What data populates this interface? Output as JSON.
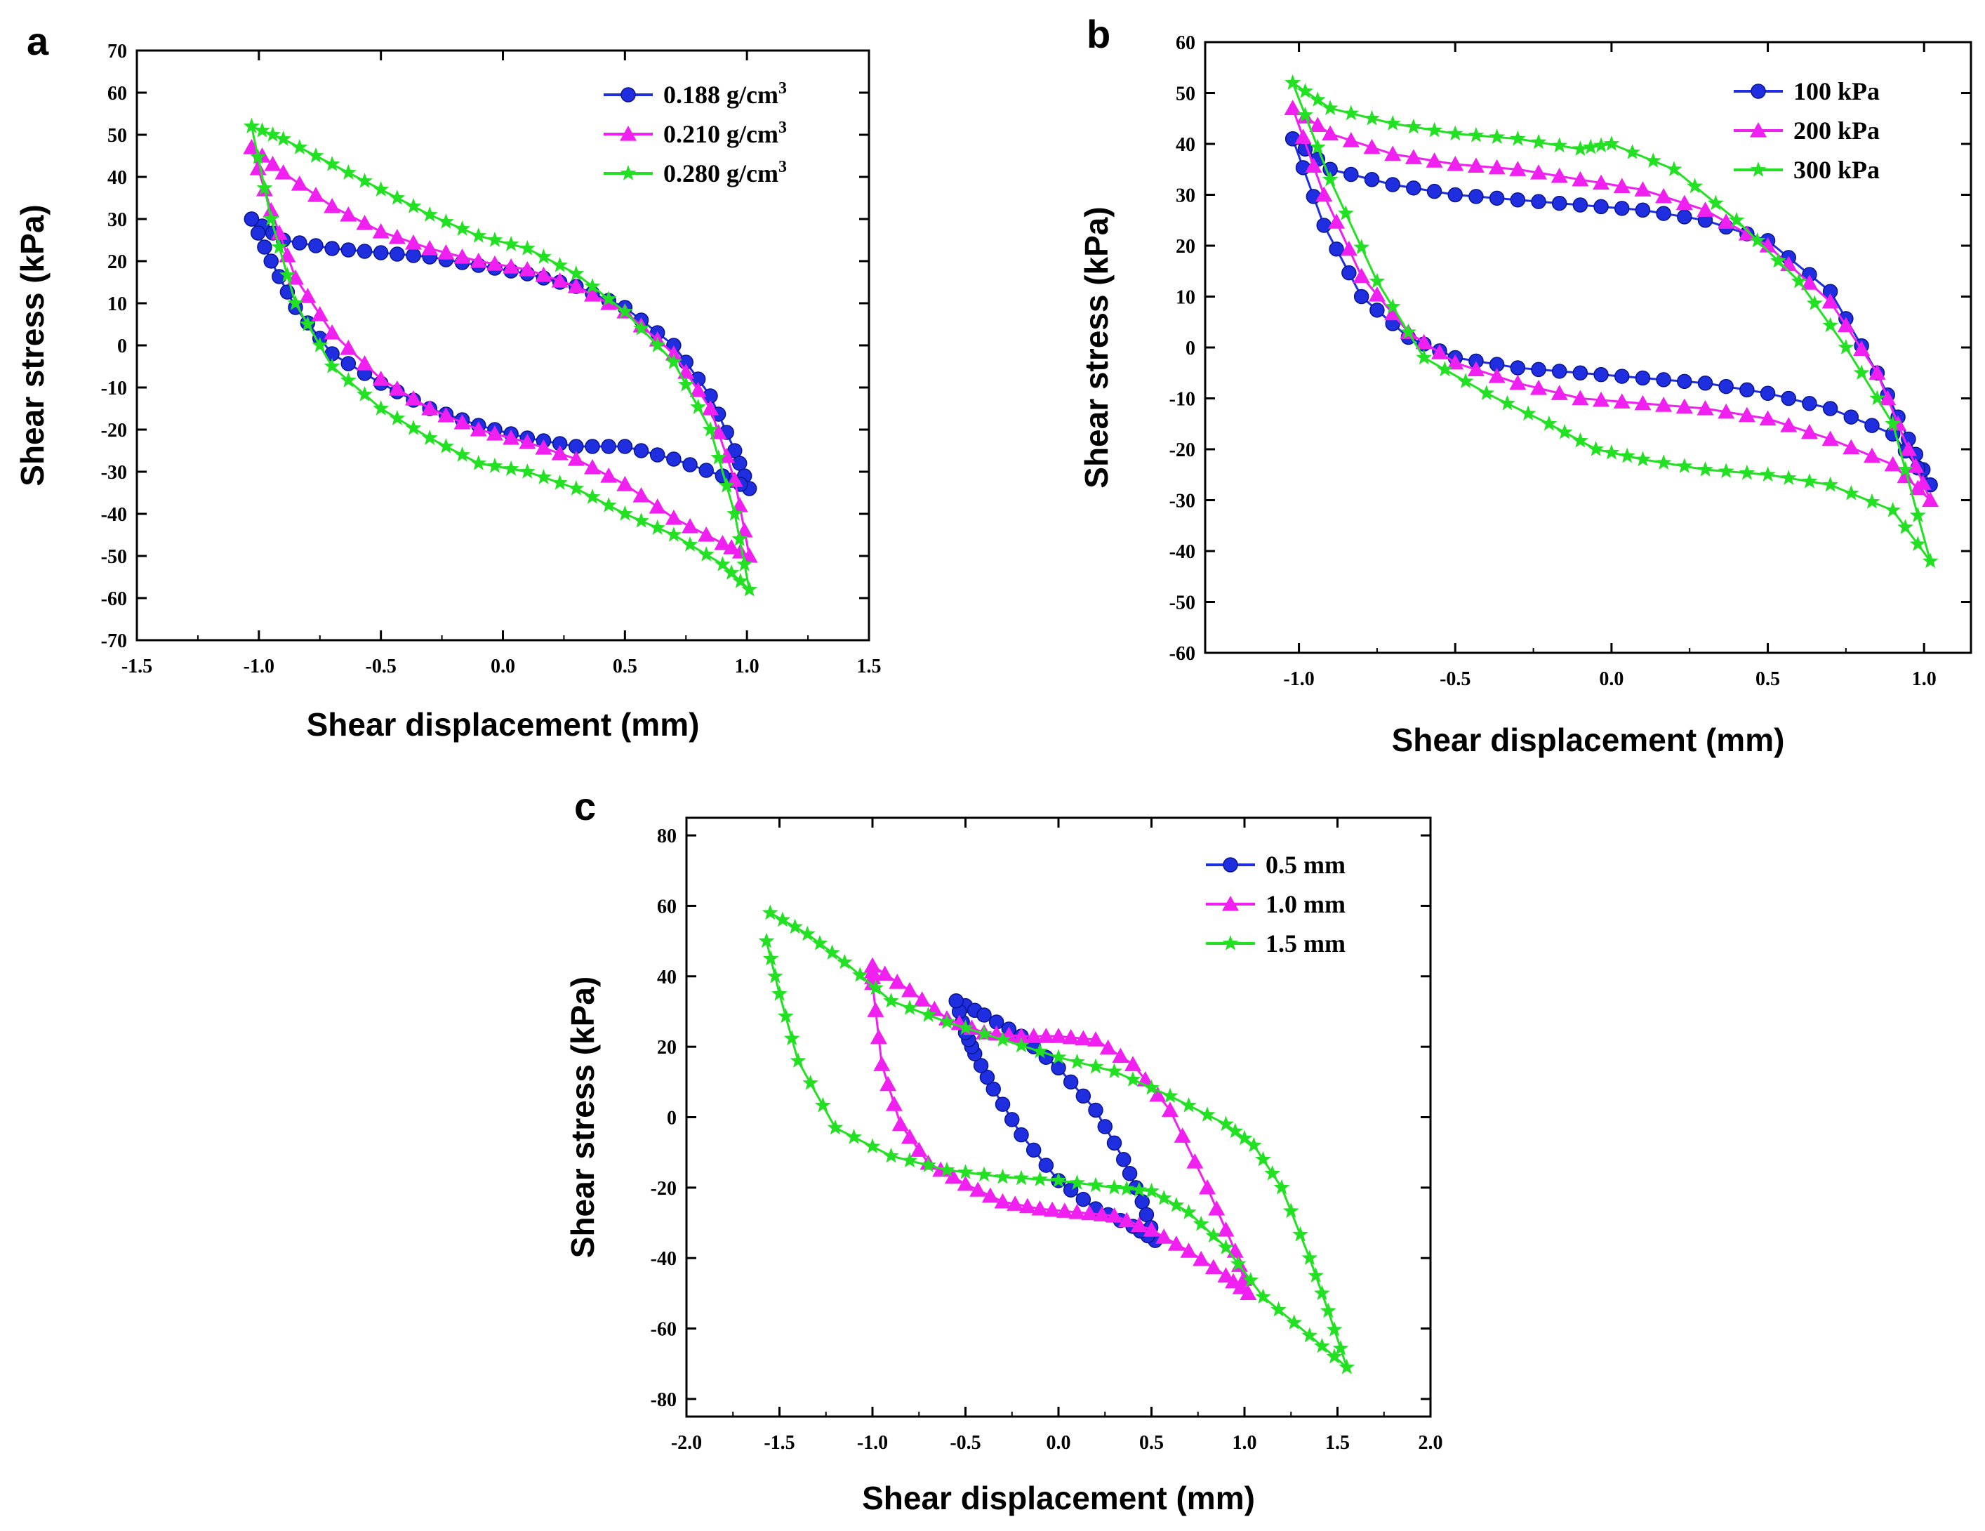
{
  "colors": {
    "blue": "#1f2fe0",
    "magenta": "#f020f0",
    "green": "#22e022"
  },
  "chart_data": [
    {
      "panel": "a",
      "type": "line",
      "xlabel": "Shear displacement (mm)",
      "ylabel": "Shear stress (kPa)",
      "xlim": [
        -1.5,
        1.5
      ],
      "ylim": [
        -70,
        70
      ],
      "xticks": [
        "-1.5",
        "-1.0",
        "-0.5",
        "0.0",
        "0.5",
        "1.0",
        "1.5"
      ],
      "yticks": [
        "-70",
        "-60",
        "-50",
        "-40",
        "-30",
        "-20",
        "-10",
        "0",
        "10",
        "20",
        "30",
        "40",
        "50",
        "60",
        "70"
      ],
      "legend_position": "top-right",
      "series": [
        {
          "name": "0.188 g/cm",
          "name_sup": "3",
          "color": "#1f2fe0",
          "marker": "circle",
          "points": [
            [
              -1.03,
              30
            ],
            [
              -0.9,
              25
            ],
            [
              -0.7,
              23
            ],
            [
              -0.5,
              22
            ],
            [
              -0.3,
              21
            ],
            [
              -0.1,
              19
            ],
            [
              0.1,
              17
            ],
            [
              0.3,
              14
            ],
            [
              0.5,
              9
            ],
            [
              0.7,
              0
            ],
            [
              0.85,
              -12
            ],
            [
              0.95,
              -25
            ],
            [
              1.01,
              -34
            ],
            [
              0.9,
              -31
            ],
            [
              0.7,
              -27
            ],
            [
              0.5,
              -24
            ],
            [
              0.3,
              -24
            ],
            [
              0.1,
              -22
            ],
            [
              -0.1,
              -19
            ],
            [
              -0.3,
              -15
            ],
            [
              -0.5,
              -9
            ],
            [
              -0.7,
              -2
            ],
            [
              -0.85,
              9
            ],
            [
              -0.95,
              20
            ],
            [
              -1.03,
              30
            ]
          ]
        },
        {
          "name": "0.210 g/cm",
          "name_sup": "3",
          "color": "#f020f0",
          "marker": "triangle",
          "points": [
            [
              -1.03,
              47
            ],
            [
              -0.9,
              41
            ],
            [
              -0.7,
              33
            ],
            [
              -0.5,
              27
            ],
            [
              -0.3,
              23
            ],
            [
              -0.1,
              20
            ],
            [
              0.1,
              18
            ],
            [
              0.3,
              14
            ],
            [
              0.5,
              8
            ],
            [
              0.7,
              -2
            ],
            [
              0.85,
              -15
            ],
            [
              0.95,
              -32
            ],
            [
              1.01,
              -50
            ],
            [
              0.9,
              -47
            ],
            [
              0.7,
              -41
            ],
            [
              0.5,
              -33
            ],
            [
              0.3,
              -27
            ],
            [
              0.1,
              -23
            ],
            [
              -0.1,
              -20
            ],
            [
              -0.3,
              -15
            ],
            [
              -0.5,
              -8
            ],
            [
              -0.7,
              3
            ],
            [
              -0.85,
              16
            ],
            [
              -0.95,
              32
            ],
            [
              -1.03,
              47
            ]
          ]
        },
        {
          "name": "0.280 g/cm",
          "name_sup": "3",
          "color": "#22e022",
          "marker": "star",
          "points": [
            [
              -1.03,
              52
            ],
            [
              -0.9,
              49
            ],
            [
              -0.7,
              43
            ],
            [
              -0.5,
              37
            ],
            [
              -0.3,
              31
            ],
            [
              -0.1,
              26
            ],
            [
              0.1,
              23
            ],
            [
              0.3,
              17
            ],
            [
              0.5,
              8
            ],
            [
              0.7,
              -4
            ],
            [
              0.85,
              -20
            ],
            [
              0.95,
              -40
            ],
            [
              1.01,
              -58
            ],
            [
              0.9,
              -52
            ],
            [
              0.7,
              -45
            ],
            [
              0.5,
              -40
            ],
            [
              0.3,
              -34
            ],
            [
              0.1,
              -30
            ],
            [
              -0.1,
              -28
            ],
            [
              -0.3,
              -22
            ],
            [
              -0.5,
              -15
            ],
            [
              -0.7,
              -5
            ],
            [
              -0.85,
              10
            ],
            [
              -0.95,
              30
            ],
            [
              -1.03,
              52
            ]
          ]
        }
      ]
    },
    {
      "panel": "b",
      "type": "line",
      "xlabel": "Shear displacement (mm)",
      "ylabel": "Shear stress (kPa)",
      "xlim": [
        -1.3,
        1.15
      ],
      "ylim": [
        -60,
        60
      ],
      "xticks": [
        "-1.0",
        "-0.5",
        "0.0",
        "0.5",
        "1.0"
      ],
      "xtick_values": [
        -1.0,
        -0.5,
        0.0,
        0.5,
        1.0
      ],
      "yticks": [
        "-60",
        "-50",
        "-40",
        "-30",
        "-20",
        "-10",
        "0",
        "10",
        "20",
        "30",
        "40",
        "50",
        "60"
      ],
      "legend_position": "top-right",
      "series": [
        {
          "name": "100 kPa",
          "color": "#1f2fe0",
          "marker": "circle",
          "points": [
            [
              -1.02,
              41
            ],
            [
              -0.9,
              35
            ],
            [
              -0.7,
              32
            ],
            [
              -0.5,
              30
            ],
            [
              -0.3,
              29
            ],
            [
              -0.1,
              28
            ],
            [
              0.1,
              27
            ],
            [
              0.3,
              25
            ],
            [
              0.5,
              21
            ],
            [
              0.7,
              11
            ],
            [
              0.85,
              -5
            ],
            [
              0.95,
              -18
            ],
            [
              1.02,
              -27
            ],
            [
              0.9,
              -17
            ],
            [
              0.7,
              -12
            ],
            [
              0.5,
              -9
            ],
            [
              0.3,
              -7
            ],
            [
              0.1,
              -6
            ],
            [
              -0.1,
              -5
            ],
            [
              -0.3,
              -4
            ],
            [
              -0.5,
              -2
            ],
            [
              -0.65,
              2
            ],
            [
              -0.8,
              10
            ],
            [
              -0.92,
              24
            ],
            [
              -1.02,
              41
            ]
          ]
        },
        {
          "name": "200 kPa",
          "color": "#f020f0",
          "marker": "triangle",
          "points": [
            [
              -1.02,
              47
            ],
            [
              -0.9,
              42
            ],
            [
              -0.7,
              38
            ],
            [
              -0.5,
              36
            ],
            [
              -0.3,
              35
            ],
            [
              -0.1,
              33
            ],
            [
              0.1,
              31
            ],
            [
              0.3,
              27
            ],
            [
              0.5,
              20
            ],
            [
              0.7,
              9
            ],
            [
              0.85,
              -5
            ],
            [
              0.95,
              -20
            ],
            [
              1.02,
              -30
            ],
            [
              0.9,
              -23
            ],
            [
              0.7,
              -18
            ],
            [
              0.5,
              -14
            ],
            [
              0.3,
              -12
            ],
            [
              0.1,
              -11
            ],
            [
              -0.1,
              -10
            ],
            [
              -0.3,
              -7
            ],
            [
              -0.5,
              -3
            ],
            [
              -0.65,
              3
            ],
            [
              -0.8,
              14
            ],
            [
              -0.92,
              30
            ],
            [
              -1.02,
              47
            ]
          ]
        },
        {
          "name": "300 kPa",
          "color": "#22e022",
          "marker": "star",
          "points": [
            [
              -1.02,
              52
            ],
            [
              -0.9,
              47
            ],
            [
              -0.7,
              44
            ],
            [
              -0.5,
              42
            ],
            [
              -0.3,
              41
            ],
            [
              -0.1,
              39
            ],
            [
              0.0,
              40
            ],
            [
              0.2,
              35
            ],
            [
              0.4,
              25
            ],
            [
              0.6,
              13
            ],
            [
              0.75,
              0
            ],
            [
              0.9,
              -15
            ],
            [
              1.02,
              -42
            ],
            [
              0.9,
              -32
            ],
            [
              0.7,
              -27
            ],
            [
              0.5,
              -25
            ],
            [
              0.3,
              -24
            ],
            [
              0.1,
              -22
            ],
            [
              -0.05,
              -20
            ],
            [
              -0.2,
              -15
            ],
            [
              -0.4,
              -9
            ],
            [
              -0.6,
              -2
            ],
            [
              -0.75,
              13
            ],
            [
              -0.9,
              33
            ],
            [
              -1.02,
              52
            ]
          ]
        }
      ]
    },
    {
      "panel": "c",
      "type": "line",
      "xlabel": "Shear displacement (mm)",
      "ylabel": "Shear stress (kPa)",
      "xlim": [
        -2.0,
        2.0
      ],
      "ylim": [
        -85,
        85
      ],
      "xticks": [
        "-2.0",
        "-1.5",
        "-1.0",
        "-0.5",
        "0.0",
        "0.5",
        "1.0",
        "1.5",
        "2.0"
      ],
      "xtick_values": [
        -2.0,
        -1.5,
        -1.0,
        -0.5,
        0.0,
        0.5,
        1.0,
        1.5,
        2.0
      ],
      "yticks": [
        "-80",
        "-60",
        "-40",
        "-20",
        "0",
        "20",
        "40",
        "60",
        "80"
      ],
      "ytick_values": [
        -80,
        -60,
        -40,
        -20,
        0,
        20,
        40,
        60,
        80
      ],
      "legend_position": "top-right",
      "series": [
        {
          "name": "0.5 mm",
          "color": "#1f2fe0",
          "marker": "circle",
          "points": [
            [
              -0.55,
              33
            ],
            [
              -0.4,
              29
            ],
            [
              -0.2,
              23
            ],
            [
              0.0,
              14
            ],
            [
              0.2,
              2
            ],
            [
              0.35,
              -12
            ],
            [
              0.45,
              -24
            ],
            [
              0.52,
              -35
            ],
            [
              0.4,
              -31
            ],
            [
              0.2,
              -26
            ],
            [
              0.0,
              -18
            ],
            [
              -0.2,
              -5
            ],
            [
              -0.35,
              8
            ],
            [
              -0.45,
              18
            ],
            [
              -0.5,
              24
            ],
            [
              -0.55,
              33
            ]
          ]
        },
        {
          "name": "1.0 mm",
          "color": "#f020f0",
          "marker": "triangle",
          "points": [
            [
              -1.0,
              43
            ],
            [
              -0.8,
              36
            ],
            [
              -0.6,
              28
            ],
            [
              -0.4,
              24
            ],
            [
              -0.2,
              23
            ],
            [
              0.0,
              23
            ],
            [
              0.2,
              22
            ],
            [
              0.4,
              15
            ],
            [
              0.6,
              2
            ],
            [
              0.8,
              -20
            ],
            [
              0.95,
              -38
            ],
            [
              1.02,
              -50
            ],
            [
              0.9,
              -45
            ],
            [
              0.7,
              -38
            ],
            [
              0.5,
              -32
            ],
            [
              0.3,
              -28
            ],
            [
              0.1,
              -27
            ],
            [
              -0.1,
              -26
            ],
            [
              -0.3,
              -24
            ],
            [
              -0.5,
              -19
            ],
            [
              -0.7,
              -13
            ],
            [
              -0.85,
              -2
            ],
            [
              -0.95,
              15
            ],
            [
              -1.0,
              38
            ],
            [
              -1.0,
              43
            ]
          ]
        },
        {
          "name": "1.5 mm",
          "color": "#22e022",
          "marker": "star",
          "points": [
            [
              -1.55,
              58
            ],
            [
              -1.35,
              52
            ],
            [
              -1.15,
              44
            ],
            [
              -0.9,
              33
            ],
            [
              -0.6,
              27
            ],
            [
              -0.3,
              22
            ],
            [
              0.0,
              17
            ],
            [
              0.3,
              13
            ],
            [
              0.6,
              6
            ],
            [
              0.9,
              -2
            ],
            [
              1.05,
              -8
            ],
            [
              1.2,
              -20
            ],
            [
              1.35,
              -40
            ],
            [
              1.45,
              -55
            ],
            [
              1.55,
              -71
            ],
            [
              1.35,
              -62
            ],
            [
              1.1,
              -51
            ],
            [
              0.9,
              -37
            ],
            [
              0.7,
              -27
            ],
            [
              0.5,
              -21
            ],
            [
              0.3,
              -20
            ],
            [
              0.0,
              -18
            ],
            [
              -0.3,
              -17
            ],
            [
              -0.6,
              -15
            ],
            [
              -0.9,
              -11
            ],
            [
              -1.2,
              -3
            ],
            [
              -1.4,
              16
            ],
            [
              -1.5,
              35
            ],
            [
              -1.57,
              50
            ]
          ]
        }
      ]
    }
  ]
}
